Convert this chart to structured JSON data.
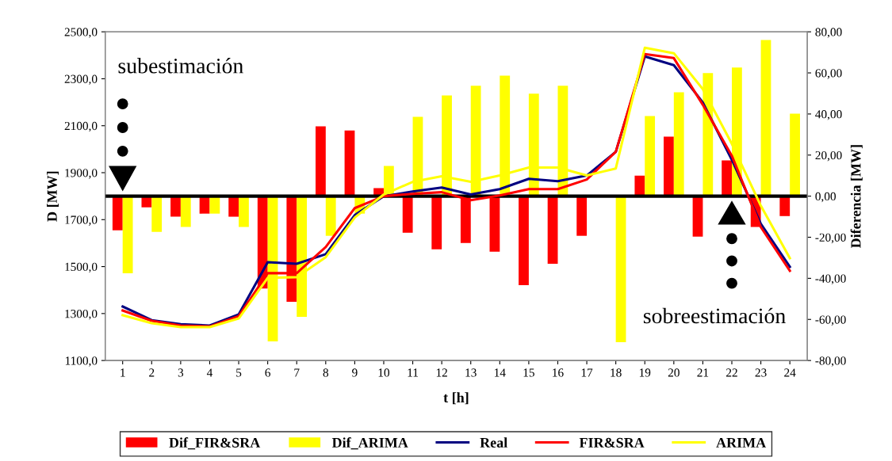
{
  "chart_data": {
    "type": "bar",
    "xlabel": "t [h]",
    "ylabel": "D [MW]",
    "y2label": "Diferencia [MW]",
    "categories": [
      "1",
      "2",
      "3",
      "4",
      "5",
      "6",
      "7",
      "8",
      "9",
      "10",
      "11",
      "12",
      "13",
      "14",
      "15",
      "16",
      "17",
      "18",
      "19",
      "20",
      "21",
      "22",
      "23",
      "24"
    ],
    "series": [
      {
        "name": "Dif_FIR&SRA",
        "axis": "y2",
        "color": "#ff0000",
        "values": [
          -16.6,
          -5.4,
          -10,
          -8.5,
          -10,
          -45,
          -51.4,
          34,
          32,
          3.9,
          -17.8,
          -25.9,
          -22.8,
          -27,
          -43.3,
          -32.9,
          -19.3,
          0,
          10,
          29,
          -19.7,
          17.4,
          -15,
          -9.7
        ]
      },
      {
        "name": "Dif_ARIMA",
        "axis": "y2",
        "color": "#ffff00",
        "values": [
          -37.5,
          -17.4,
          -15,
          -8.5,
          -15,
          -70.7,
          -58.7,
          -19.3,
          -8.5,
          14.7,
          38.6,
          49,
          53.7,
          58.7,
          49.9,
          53.7,
          0,
          -71.1,
          39,
          50.6,
          59.9,
          62.6,
          76,
          40.2
        ]
      },
      {
        "name": "Real",
        "type": "line",
        "color": "#000080",
        "values": [
          1330,
          1272,
          1255,
          1249,
          1296,
          1519,
          1512,
          1553,
          1719,
          1800,
          1820,
          1837,
          1807,
          1830,
          1874,
          1864,
          1888,
          1989,
          2395,
          2358,
          2199,
          1955,
          1682,
          1499
        ]
      },
      {
        "name": "FIR&SRA",
        "type": "line",
        "color": "#ff0000",
        "values": [
          1313,
          1269,
          1249,
          1245,
          1289,
          1472,
          1472,
          1583,
          1749,
          1800,
          1810,
          1817,
          1783,
          1803,
          1830,
          1830,
          1871,
          1989,
          2405,
          2388,
          2189,
          1972,
          1668,
          1482
        ]
      },
      {
        "name": "ARIMA",
        "type": "line",
        "color": "#ffff00",
        "values": [
          1293,
          1259,
          1242,
          1242,
          1279,
          1452,
          1455,
          1540,
          1709,
          1807,
          1861,
          1885,
          1861,
          1888,
          1922,
          1922,
          1888,
          1918,
          2432,
          2409,
          2256,
          2023,
          1759,
          1536
        ]
      }
    ],
    "ylim": [
      1100,
      2500
    ],
    "yticks": [
      {
        "value": 1100,
        "label": "1100,0"
      },
      {
        "value": 1300,
        "label": "1300,0"
      },
      {
        "value": 1500,
        "label": "1500,0"
      },
      {
        "value": 1700,
        "label": "1700,0"
      },
      {
        "value": 1900,
        "label": "1900,0"
      },
      {
        "value": 2100,
        "label": "2100,0"
      },
      {
        "value": 2300,
        "label": "2300,0"
      },
      {
        "value": 2500,
        "label": "2500,0"
      }
    ],
    "y2lim": [
      -80,
      80
    ],
    "y2ticks": [
      {
        "value": -80,
        "label": "-80,00"
      },
      {
        "value": -60,
        "label": "-60,00"
      },
      {
        "value": -40,
        "label": "-40,00"
      },
      {
        "value": -20,
        "label": "-20,00"
      },
      {
        "value": 0,
        "label": "0,00"
      },
      {
        "value": 20,
        "label": "20,00"
      },
      {
        "value": 40,
        "label": "40,00"
      },
      {
        "value": 60,
        "label": "60,00"
      },
      {
        "value": 80,
        "label": "80,00"
      }
    ],
    "ref_lines": [
      {
        "axis": "y2",
        "value": 0,
        "color": "#000000"
      }
    ],
    "annotations": [
      "subestimación",
      "sobreestimación"
    ],
    "legend": "bottom",
    "grid": false
  }
}
